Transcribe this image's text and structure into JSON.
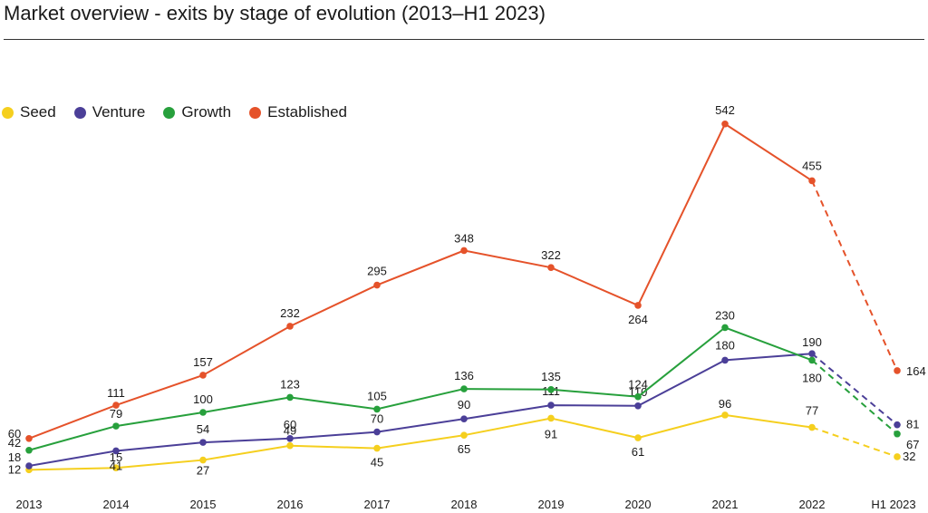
{
  "title": "Market overview - exits by stage of evolution (2013–H1 2023)",
  "chart_data": {
    "type": "line",
    "categories": [
      "2013",
      "2014",
      "2015",
      "2016",
      "2017",
      "2018",
      "2019",
      "2020",
      "2021",
      "2022",
      "H1 2023"
    ],
    "projected_from_index": 9,
    "legend_position": "top-left",
    "series": [
      {
        "name": "Seed",
        "color": "#f5cf1e",
        "values": [
          12,
          15,
          27,
          49,
          45,
          65,
          91,
          61,
          96,
          77,
          32
        ]
      },
      {
        "name": "Venture",
        "color": "#4b3f98",
        "values": [
          18,
          41,
          54,
          60,
          70,
          90,
          111,
          110,
          180,
          190,
          81
        ]
      },
      {
        "name": "Growth",
        "color": "#27a03c",
        "values": [
          42,
          79,
          100,
          123,
          105,
          136,
          135,
          124,
          230,
          180,
          67
        ]
      },
      {
        "name": "Established",
        "color": "#e5522a",
        "values": [
          60,
          111,
          157,
          232,
          295,
          348,
          322,
          264,
          542,
          455,
          164
        ]
      }
    ]
  }
}
